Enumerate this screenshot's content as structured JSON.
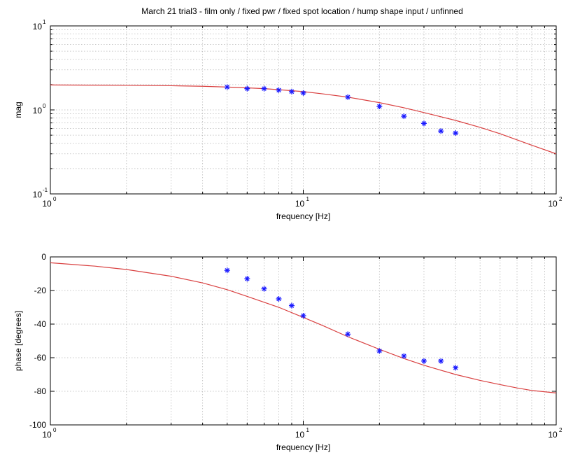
{
  "chart_data": [
    {
      "type": "scatter",
      "title": "March 21 trial3 - film only / fixed pwr / fixed spot location / hump shape input / unfinned",
      "xlabel": "frequency [Hz]",
      "ylabel": "mag",
      "xscale": "log",
      "yscale": "log",
      "xlim": [
        1,
        100
      ],
      "ylim": [
        0.1,
        10
      ],
      "x_ticks": [
        {
          "value": 1,
          "base": "10",
          "exp": "0"
        },
        {
          "value": 10,
          "base": "10",
          "exp": "1"
        },
        {
          "value": 100,
          "base": "10",
          "exp": "2"
        }
      ],
      "y_ticks": [
        {
          "value": 0.1,
          "base": "10",
          "exp": "-1"
        },
        {
          "value": 1,
          "base": "10",
          "exp": "0"
        },
        {
          "value": 10,
          "base": "10",
          "exp": "1"
        }
      ],
      "grid": true,
      "colors": {
        "measured": "#1a1aff",
        "model": "#d94040"
      },
      "series": [
        {
          "type": "scatter",
          "marker": "*",
          "x": [
            5,
            6,
            7,
            8,
            9,
            10,
            15,
            20,
            25,
            30,
            35,
            40
          ],
          "y": [
            1.87,
            1.79,
            1.79,
            1.72,
            1.65,
            1.59,
            1.42,
            1.1,
            0.84,
            0.69,
            0.56,
            0.53
          ]
        },
        {
          "type": "line",
          "x": [
            1,
            1.5,
            2,
            3,
            4,
            5,
            6,
            7,
            8,
            10,
            12,
            15,
            20,
            25,
            30,
            40,
            50,
            60,
            70,
            80,
            100
          ],
          "y": [
            1.98,
            1.97,
            1.96,
            1.94,
            1.91,
            1.87,
            1.83,
            1.79,
            1.74,
            1.65,
            1.55,
            1.42,
            1.22,
            1.06,
            0.93,
            0.75,
            0.62,
            0.52,
            0.44,
            0.38,
            0.3
          ]
        }
      ]
    },
    {
      "type": "scatter",
      "title": "",
      "xlabel": "frequency [Hz]",
      "ylabel": "phase [degrees]",
      "xscale": "log",
      "yscale": "linear",
      "xlim": [
        1,
        100
      ],
      "ylim": [
        -100,
        0
      ],
      "x_ticks": [
        {
          "value": 1,
          "base": "10",
          "exp": "0"
        },
        {
          "value": 10,
          "base": "10",
          "exp": "1"
        },
        {
          "value": 100,
          "base": "10",
          "exp": "2"
        }
      ],
      "y_ticks": [
        0,
        -20,
        -40,
        -60,
        -80,
        -100
      ],
      "grid": true,
      "colors": {
        "measured": "#1a1aff",
        "model": "#d94040"
      },
      "series": [
        {
          "type": "scatter",
          "marker": "*",
          "x": [
            5,
            6,
            7,
            8,
            9,
            10,
            15,
            20,
            25,
            30,
            35,
            40
          ],
          "y": [
            -8,
            -13,
            -19,
            -25,
            -29,
            -35,
            -46,
            -56,
            -59,
            -62,
            -62,
            -66
          ]
        },
        {
          "type": "line",
          "x": [
            1,
            1.5,
            2,
            3,
            4,
            5,
            6,
            7,
            8,
            10,
            12,
            15,
            20,
            25,
            30,
            40,
            50,
            60,
            70,
            80,
            100
          ],
          "y": [
            -3.5,
            -5.5,
            -7.5,
            -11.5,
            -15.5,
            -19.5,
            -23.5,
            -27,
            -30,
            -36,
            -41,
            -47.5,
            -55,
            -60.5,
            -64.5,
            -70,
            -73.5,
            -76,
            -78,
            -79.5,
            -81
          ]
        }
      ]
    }
  ]
}
